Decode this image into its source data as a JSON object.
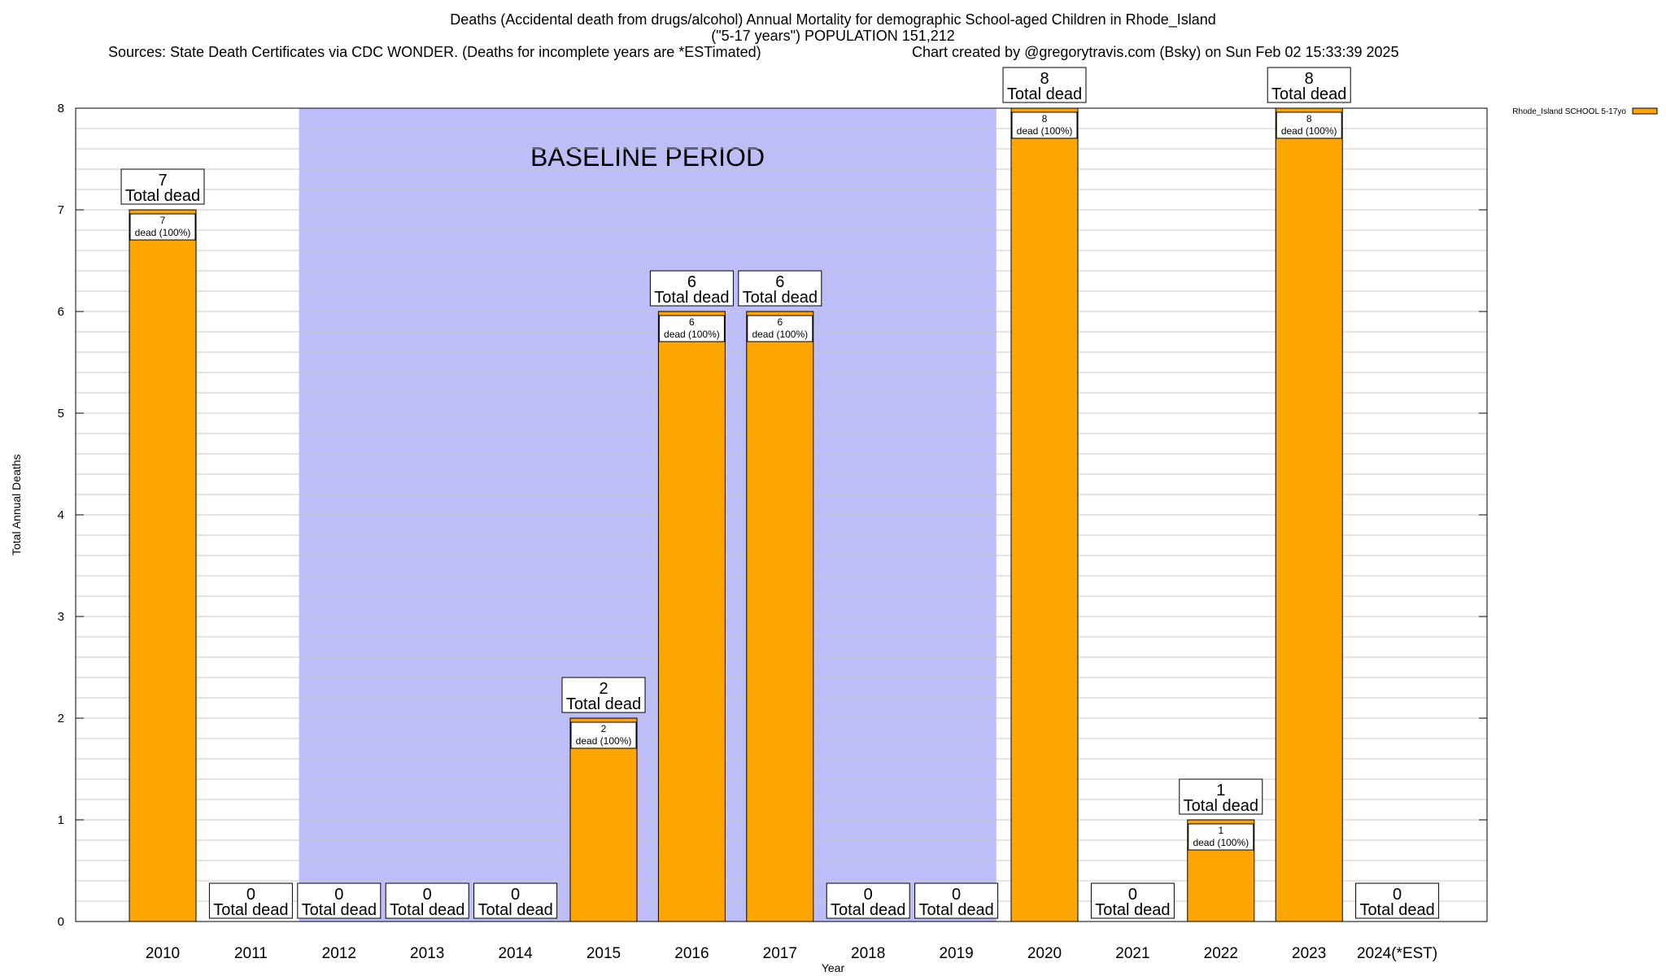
{
  "chart_data": {
    "type": "bar",
    "title": "Deaths (Accidental death from drugs/alcohol) Annual Mortality for demographic School-aged Children in Rhode_Island",
    "subtitle": "(\"5-17 years\") POPULATION 151,212",
    "sources": "Sources: State Death Certificates via CDC WONDER. (Deaths for incomplete years are *ESTimated)",
    "credit": "Chart created by @gregorytravis.com (Bsky) on Sun Feb 02 15:33:39 2025",
    "xlabel": "Year",
    "ylabel": "Total Annual Deaths",
    "ylim": [
      0,
      8
    ],
    "yticks": [
      0,
      1,
      2,
      3,
      4,
      5,
      6,
      7,
      8
    ],
    "grid": true,
    "legend_position": "top-right",
    "categories": [
      "2010",
      "2011",
      "2012",
      "2013",
      "2014",
      "2015",
      "2016",
      "2017",
      "2018",
      "2019",
      "2020",
      "2021",
      "2022",
      "2023",
      "2024(*EST)"
    ],
    "series": [
      {
        "name": "Rhode_Island SCHOOL 5-17yo",
        "color": "#FFA500",
        "values": [
          7,
          0,
          0,
          0,
          0,
          2,
          6,
          6,
          0,
          0,
          8,
          0,
          1,
          8,
          0
        ]
      }
    ],
    "total_label": "Total dead",
    "inner_label_suffix": "dead (100%)",
    "baseline": {
      "label": "BASELINE PERIOD",
      "from": "2012",
      "to": "2019",
      "color": "#BDBDFA"
    }
  }
}
